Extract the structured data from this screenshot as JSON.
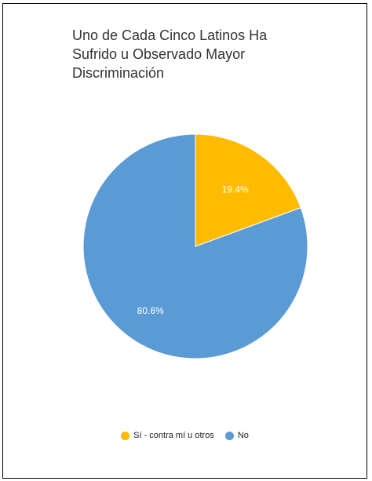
{
  "chart_data": {
    "type": "pie",
    "title_lines": [
      "Uno de Cada Cinco Latinos Ha",
      "Sufrido u Observado Mayor",
      "Discriminación"
    ],
    "slices": [
      {
        "label": "Sí - contra mí u otros",
        "value": 19.4,
        "display": "19.4%",
        "color": "#FFBB00"
      },
      {
        "label": "No",
        "value": 80.6,
        "display": "80.6%",
        "color": "#5B9BD5"
      }
    ],
    "legend_position": "bottom"
  }
}
